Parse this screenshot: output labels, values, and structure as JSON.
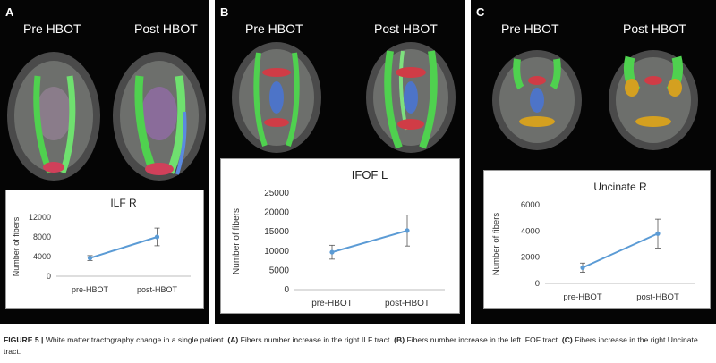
{
  "panels": [
    {
      "letter": "A",
      "pre_label": "Pre HBOT",
      "post_label": "Post HBOT"
    },
    {
      "letter": "B",
      "pre_label": "Pre HBOT",
      "post_label": "Post HBOT"
    },
    {
      "letter": "C",
      "pre_label": "Pre HBOT",
      "post_label": "Post HBOT"
    }
  ],
  "chart_data": [
    {
      "type": "line",
      "title": "ILF R",
      "xlabel": "",
      "ylabel": "Number of fibers",
      "categories": [
        "pre-HBOT",
        "post-HBOT"
      ],
      "series": [
        {
          "values": [
            3700,
            8000
          ],
          "error": [
            500,
            1800
          ]
        }
      ],
      "ylim": [
        0,
        12000
      ],
      "yticks": [
        0,
        4000,
        8000,
        12000
      ],
      "grid": false,
      "color": "#5b9bd5"
    },
    {
      "type": "line",
      "title": "IFOF L",
      "xlabel": "",
      "ylabel": "Number of fibers",
      "categories": [
        "pre-HBOT",
        "post-HBOT"
      ],
      "series": [
        {
          "values": [
            9700,
            15300
          ],
          "error": [
            1800,
            4000
          ]
        }
      ],
      "ylim": [
        0,
        25000
      ],
      "yticks": [
        0,
        5000,
        10000,
        15000,
        20000,
        25000
      ],
      "grid": false,
      "color": "#5b9bd5"
    },
    {
      "type": "line",
      "title": "Uncinate R",
      "xlabel": "",
      "ylabel": "Number of fibers",
      "categories": [
        "pre-HBOT",
        "post-HBOT"
      ],
      "series": [
        {
          "values": [
            1200,
            3800
          ],
          "error": [
            350,
            1100
          ]
        }
      ],
      "ylim": [
        0,
        6000
      ],
      "yticks": [
        0,
        2000,
        4000,
        6000
      ],
      "grid": false,
      "color": "#5b9bd5"
    }
  ],
  "caption": {
    "figure_label": "FIGURE 5 |",
    "intro": " White matter tractography change in a single patient. ",
    "a_tag": "(A)",
    "a_text": " Fibers number increase in the right ILF tract. ",
    "b_tag": "(B)",
    "b_text": " Fibers number increase in the left IFOF tract. ",
    "c_tag": "(C)",
    "c_text": " Fibers increase in the right Uncinate tract."
  }
}
